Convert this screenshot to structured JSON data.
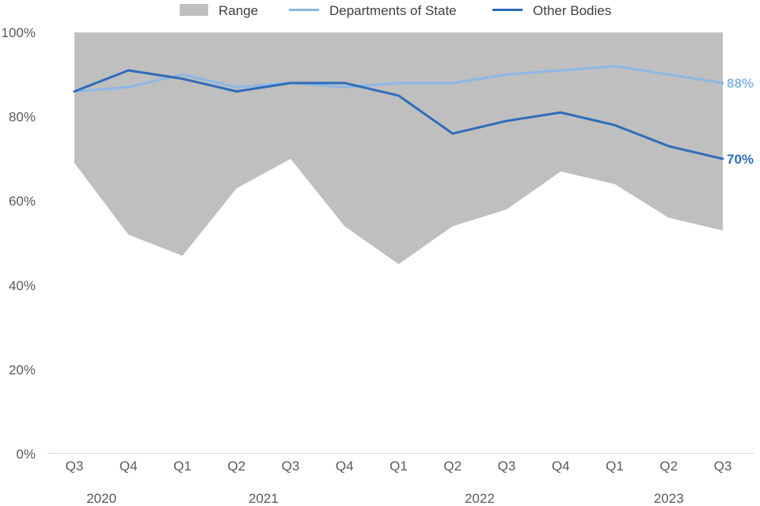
{
  "chart_data": {
    "type": "line",
    "title": "",
    "xlabel": "",
    "ylabel": "",
    "ylim": [
      0,
      100
    ],
    "y_ticks": [
      0,
      20,
      40,
      60,
      80,
      100
    ],
    "y_tick_labels": [
      "0%",
      "20%",
      "40%",
      "60%",
      "80%",
      "100%"
    ],
    "categories": [
      "Q3",
      "Q4",
      "Q1",
      "Q2",
      "Q3",
      "Q4",
      "Q1",
      "Q2",
      "Q3",
      "Q4",
      "Q1",
      "Q2",
      "Q3"
    ],
    "year_labels": [
      {
        "label": "2020",
        "from": 0,
        "to": 1
      },
      {
        "label": "2021",
        "from": 2,
        "to": 5
      },
      {
        "label": "2022",
        "from": 6,
        "to": 9
      },
      {
        "label": "2023",
        "from": 10,
        "to": 12
      }
    ],
    "range": {
      "name": "Range",
      "color": "#bfbfbf",
      "lower": [
        69,
        52,
        47,
        63,
        70,
        54,
        45,
        54,
        58,
        67,
        64,
        56,
        53
      ],
      "upper": [
        100,
        100,
        100,
        100,
        100,
        100,
        100,
        100,
        100,
        100,
        100,
        100,
        100
      ]
    },
    "series": [
      {
        "name": "Departments of State",
        "color": "#8cb7e4",
        "values": [
          86,
          87,
          90,
          87,
          88,
          87,
          88,
          88,
          90,
          91,
          92,
          90,
          88
        ],
        "end_label": "88%"
      },
      {
        "name": "Other Bodies",
        "color": "#2e6db9",
        "values": [
          86,
          91,
          89,
          86,
          88,
          88,
          85,
          76,
          79,
          81,
          78,
          73,
          70
        ],
        "end_label": "70%"
      }
    ],
    "legend_position": "top"
  }
}
